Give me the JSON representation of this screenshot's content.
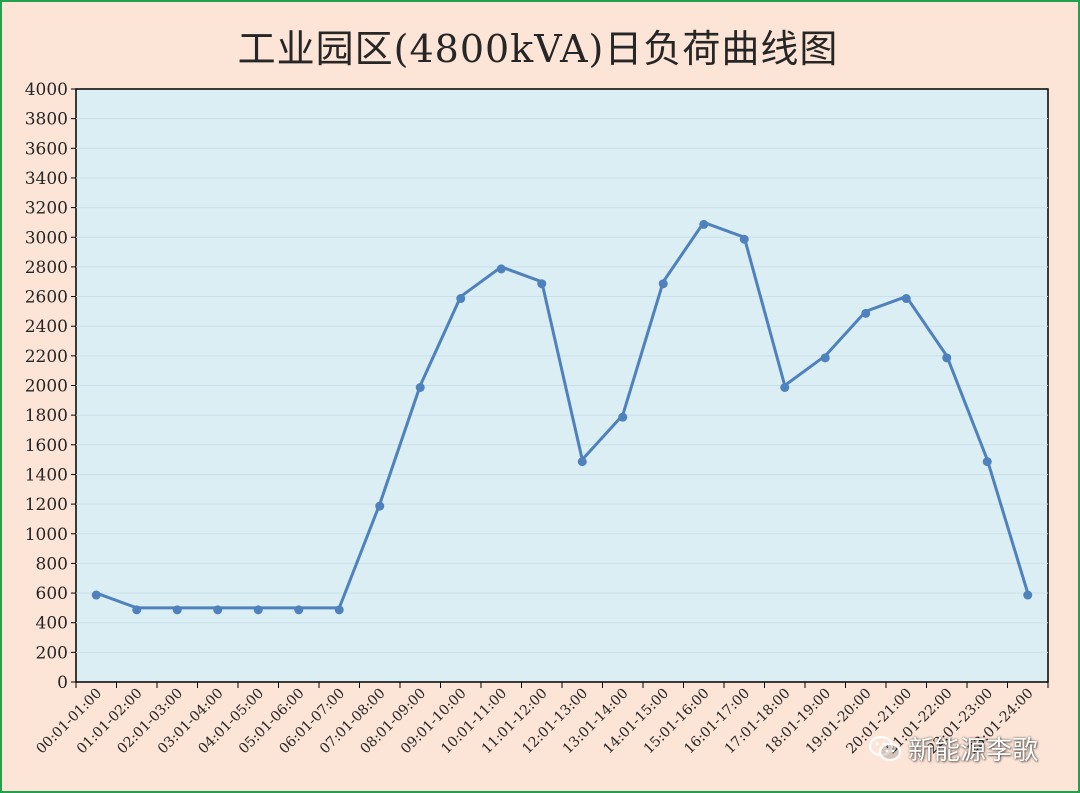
{
  "chart_data": {
    "type": "line",
    "title": "工业园区(4800kVA)日负荷曲线图",
    "categories": [
      "00:01-01:00",
      "01:01-02:00",
      "02:01-03:00",
      "03:01-04:00",
      "04:01-05:00",
      "05:01-06:00",
      "06:01-07:00",
      "07:01-08:00",
      "08:01-09:00",
      "09:01-10:00",
      "10:01-11:00",
      "11:01-12:00",
      "12:01-13:00",
      "13:01-14:00",
      "14:01-15:00",
      "15:01-16:00",
      "16:01-17:00",
      "17:01-18:00",
      "18:01-19:00",
      "19:01-20:00",
      "20:01-21:00",
      "21:01-22:00",
      "22:01-23:00",
      "23:01-24:00"
    ],
    "values": [
      600,
      500,
      500,
      500,
      500,
      500,
      500,
      1200,
      2000,
      2600,
      2800,
      2700,
      1500,
      1800,
      2700,
      3100,
      3000,
      2000,
      2200,
      2500,
      2600,
      2200,
      1500,
      600
    ],
    "ylim": [
      0,
      4000
    ],
    "yticks": [
      0,
      200,
      400,
      600,
      800,
      1000,
      1200,
      1400,
      1600,
      1800,
      2000,
      2200,
      2400,
      2600,
      2800,
      3000,
      3200,
      3400,
      3600,
      3800,
      4000
    ],
    "grid": true,
    "line_color": "#4F81BD",
    "plot_bg": "#DAEEF3",
    "page_bg": "#FCE4D6",
    "border_color": "#22A04B"
  },
  "watermark": {
    "text": "新能源李歌",
    "icon": "wechat-icon"
  }
}
